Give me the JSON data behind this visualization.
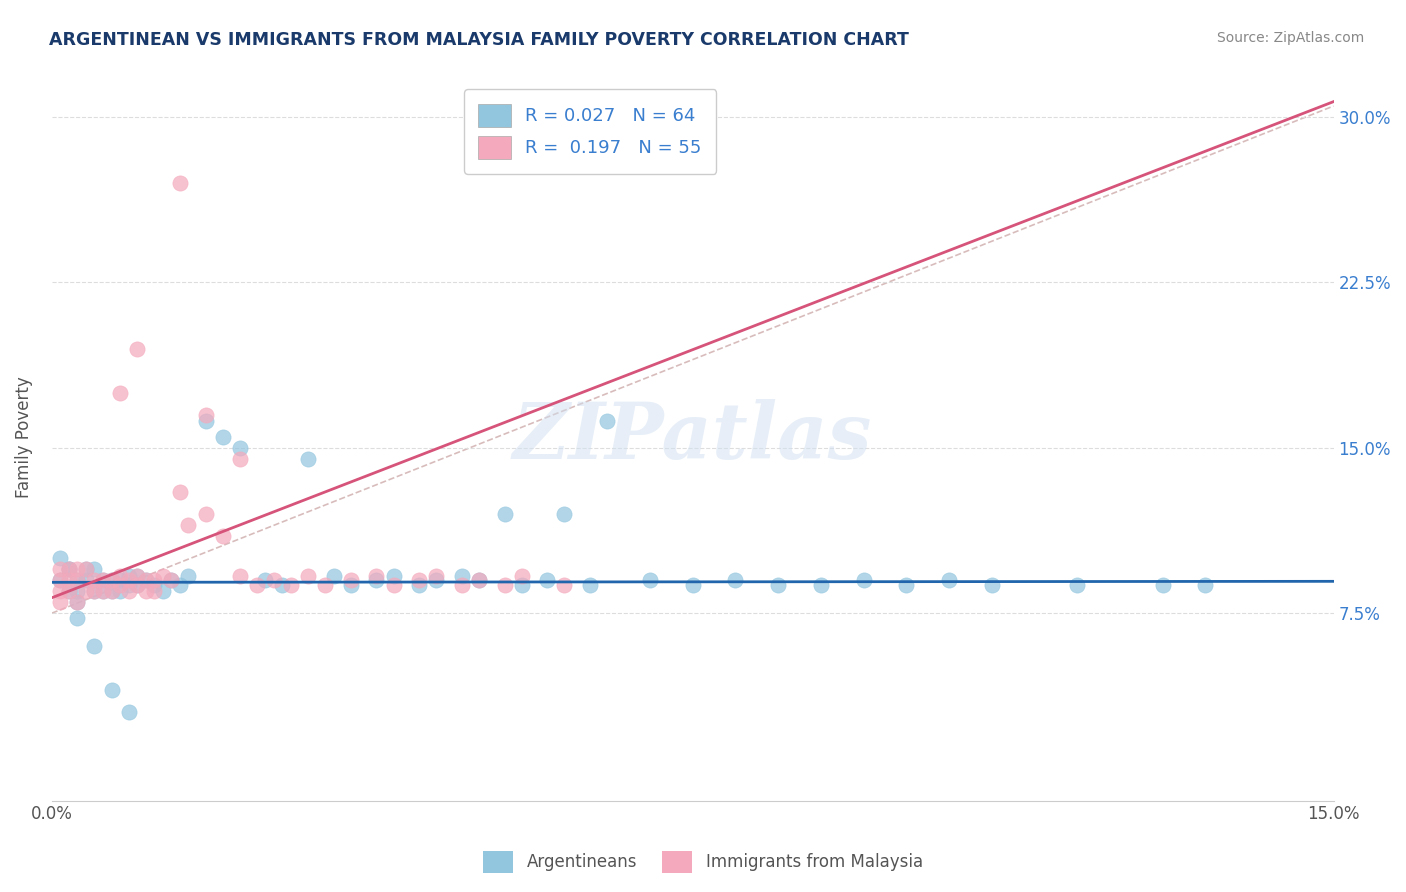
{
  "title": "ARGENTINEAN VS IMMIGRANTS FROM MALAYSIA FAMILY POVERTY CORRELATION CHART",
  "source": "Source: ZipAtlas.com",
  "ylabel": "Family Poverty",
  "y_ticks": [
    "7.5%",
    "15.0%",
    "22.5%",
    "30.0%"
  ],
  "y_tick_vals": [
    0.075,
    0.15,
    0.225,
    0.3
  ],
  "x_range": [
    0.0,
    0.15
  ],
  "y_range": [
    -0.01,
    0.32
  ],
  "blue_color": "#92c5de",
  "pink_color": "#f4a9bc",
  "blue_line_color": "#2166ac",
  "pink_line_color": "#d6537a",
  "diag_color": "#c8a0a0",
  "background_color": "#ffffff",
  "grid_color": "#dddddd",
  "title_color": "#1a3a6b",
  "source_color": "#888888",
  "tick_color": "#3a7ecf",
  "label_color": "#555555",
  "legend1_label": "R = 0.027   N = 64",
  "legend2_label": "R =  0.197   N = 55",
  "bottom_legend1": "Argentineans",
  "bottom_legend2": "Immigrants from Malaysia",
  "watermark": "ZIPatlas",
  "argentinean_x": [
    0.001,
    0.001,
    0.002,
    0.002,
    0.002,
    0.003,
    0.003,
    0.003,
    0.004,
    0.004,
    0.005,
    0.005,
    0.006,
    0.006,
    0.007,
    0.007,
    0.008,
    0.008,
    0.009,
    0.009,
    0.01,
    0.01,
    0.011,
    0.012,
    0.013,
    0.014,
    0.015,
    0.016,
    0.018,
    0.02,
    0.022,
    0.025,
    0.027,
    0.03,
    0.033,
    0.035,
    0.038,
    0.04,
    0.043,
    0.045,
    0.048,
    0.05,
    0.053,
    0.055,
    0.058,
    0.06,
    0.063,
    0.065,
    0.07,
    0.075,
    0.08,
    0.085,
    0.09,
    0.095,
    0.1,
    0.105,
    0.11,
    0.12,
    0.13,
    0.135,
    0.003,
    0.005,
    0.007,
    0.009
  ],
  "argentinean_y": [
    0.1,
    0.09,
    0.095,
    0.085,
    0.095,
    0.09,
    0.085,
    0.08,
    0.095,
    0.09,
    0.085,
    0.095,
    0.09,
    0.085,
    0.09,
    0.085,
    0.09,
    0.085,
    0.088,
    0.092,
    0.092,
    0.088,
    0.09,
    0.088,
    0.085,
    0.09,
    0.088,
    0.092,
    0.162,
    0.155,
    0.15,
    0.09,
    0.088,
    0.145,
    0.092,
    0.088,
    0.09,
    0.092,
    0.088,
    0.09,
    0.092,
    0.09,
    0.12,
    0.088,
    0.09,
    0.12,
    0.088,
    0.162,
    0.09,
    0.088,
    0.09,
    0.088,
    0.088,
    0.09,
    0.088,
    0.09,
    0.088,
    0.088,
    0.088,
    0.088,
    0.073,
    0.06,
    0.04,
    0.03
  ],
  "malaysia_x": [
    0.001,
    0.001,
    0.001,
    0.001,
    0.002,
    0.002,
    0.002,
    0.003,
    0.003,
    0.003,
    0.004,
    0.004,
    0.005,
    0.005,
    0.006,
    0.006,
    0.007,
    0.007,
    0.008,
    0.008,
    0.009,
    0.009,
    0.01,
    0.01,
    0.011,
    0.011,
    0.012,
    0.012,
    0.013,
    0.014,
    0.015,
    0.016,
    0.018,
    0.02,
    0.022,
    0.024,
    0.026,
    0.028,
    0.03,
    0.032,
    0.035,
    0.038,
    0.04,
    0.043,
    0.045,
    0.048,
    0.05,
    0.053,
    0.055,
    0.06,
    0.015,
    0.01,
    0.008,
    0.018,
    0.022
  ],
  "malaysia_y": [
    0.095,
    0.09,
    0.085,
    0.08,
    0.095,
    0.09,
    0.085,
    0.095,
    0.09,
    0.08,
    0.085,
    0.095,
    0.09,
    0.085,
    0.09,
    0.085,
    0.09,
    0.085,
    0.092,
    0.088,
    0.09,
    0.085,
    0.092,
    0.088,
    0.09,
    0.085,
    0.09,
    0.085,
    0.092,
    0.09,
    0.13,
    0.115,
    0.12,
    0.11,
    0.092,
    0.088,
    0.09,
    0.088,
    0.092,
    0.088,
    0.09,
    0.092,
    0.088,
    0.09,
    0.092,
    0.088,
    0.09,
    0.088,
    0.092,
    0.088,
    0.27,
    0.195,
    0.175,
    0.165,
    0.145
  ]
}
